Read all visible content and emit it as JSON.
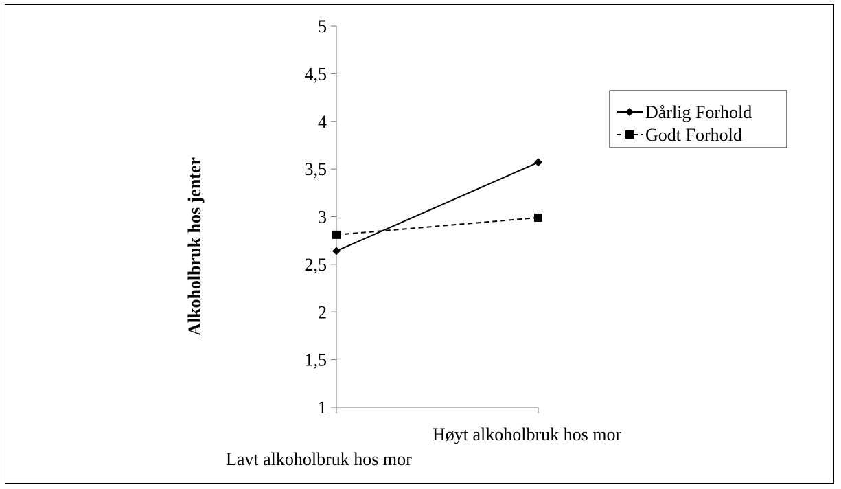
{
  "chart_data": {
    "type": "line",
    "categories": [
      "Lavt alkoholbruk hos mor",
      "Høyt alkoholbruk hos mor"
    ],
    "series": [
      {
        "name": "Dårlig Forhold",
        "values": [
          2.64,
          3.57
        ],
        "color": "#000000",
        "dash": "solid",
        "marker": "diamond"
      },
      {
        "name": "Godt Forhold",
        "values": [
          2.81,
          2.99
        ],
        "color": "#000000",
        "dash": "dashed",
        "marker": "square"
      }
    ],
    "ylabel": "Alkoholbruk hos jenter",
    "xlabel": "",
    "ylim": [
      1,
      5
    ],
    "yticks": [
      1,
      1.5,
      2,
      2.5,
      3,
      3.5,
      4,
      4.5,
      5
    ],
    "ytick_labels": [
      "1",
      "1,5",
      "2",
      "2,5",
      "3",
      "3,5",
      "4",
      "4,5",
      "5"
    ],
    "grid": false,
    "legend_position": "top-right"
  }
}
